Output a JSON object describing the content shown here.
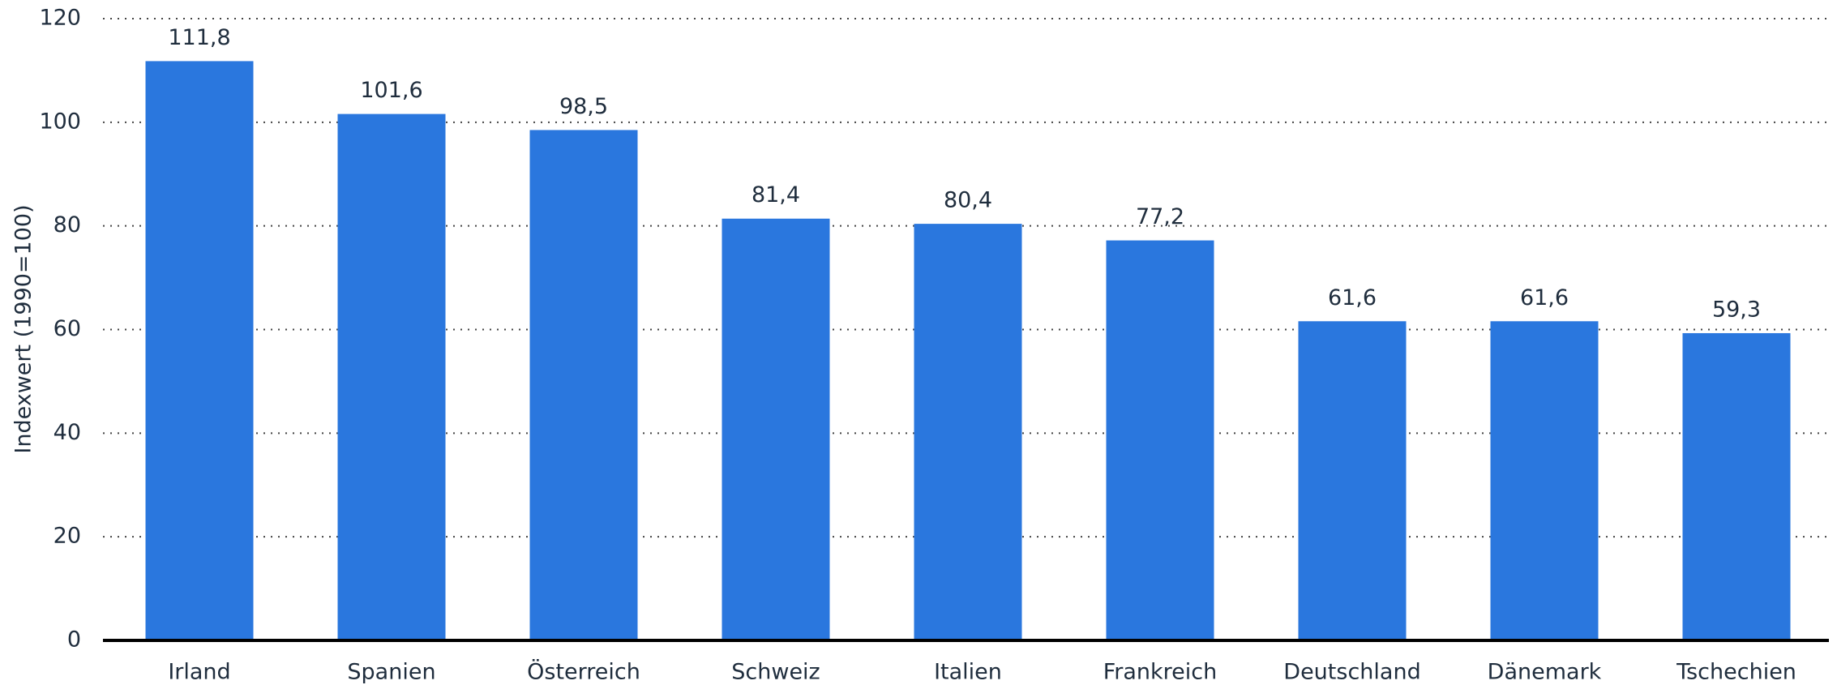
{
  "chart_data": {
    "type": "bar",
    "ylabel": "Indexwert (1990=100)",
    "categories": [
      "Irland",
      "Spanien",
      "Österreich",
      "Schweiz",
      "Italien",
      "Frankreich",
      "Deutschland",
      "Dänemark",
      "Tschechien"
    ],
    "values": [
      111.8,
      101.6,
      98.5,
      81.4,
      80.4,
      77.2,
      61.6,
      61.6,
      59.3
    ],
    "value_labels": [
      "111,8",
      "101,6",
      "98,5",
      "81,4",
      "80,4",
      "77,2",
      "61,6",
      "61,6",
      "59,3"
    ],
    "color": "#2a77de",
    "ylim": [
      0,
      120
    ],
    "yticks": [
      0,
      20,
      40,
      60,
      80,
      100,
      120
    ],
    "grid": true
  }
}
